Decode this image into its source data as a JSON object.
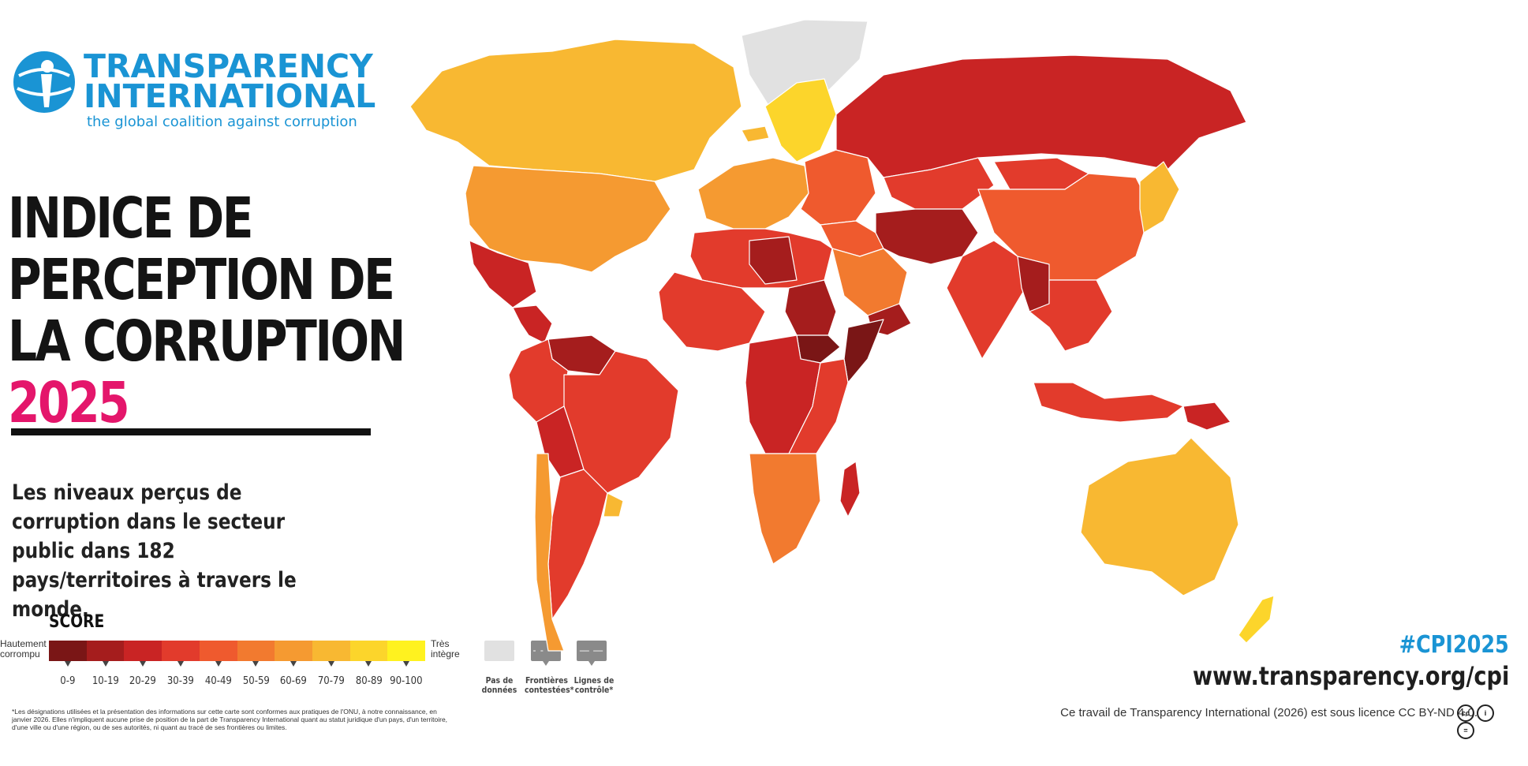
{
  "brand": {
    "line1": "TRANSPARENCY",
    "line2": "INTERNATIONAL",
    "tagline": "the global coalition against corruption",
    "color": "#1a94d4"
  },
  "title": {
    "line1": "INDICE DE",
    "line2": "PERCEPTION DE",
    "line3": "LA CORRUPTION",
    "year": "2025",
    "year_color": "#e4166b"
  },
  "subtitle": "Les niveaux perçus de corruption dans le secteur public dans 182 pays/territoires à travers le monde.",
  "legend": {
    "score_title": "SCORE",
    "low_label_1": "Hautement",
    "low_label_2": "corrompu",
    "high_label_1": "Très",
    "high_label_2": "intègre",
    "bins": [
      {
        "range": "0-9",
        "color": "#7a1616"
      },
      {
        "range": "10-19",
        "color": "#a51d1d"
      },
      {
        "range": "20-29",
        "color": "#c92424"
      },
      {
        "range": "30-39",
        "color": "#e23b2c"
      },
      {
        "range": "40-49",
        "color": "#ef5a2e"
      },
      {
        "range": "50-59",
        "color": "#f27a2f"
      },
      {
        "range": "60-69",
        "color": "#f59a31"
      },
      {
        "range": "70-79",
        "color": "#f8b832"
      },
      {
        "range": "80-89",
        "color": "#fcd52b"
      },
      {
        "range": "90-100",
        "color": "#fff21f"
      }
    ],
    "no_data_1": "Pas de",
    "no_data_2": "données",
    "disputed_1": "Frontières",
    "disputed_2": "contestées*",
    "control_1": "Lignes de",
    "control_2": "contrôle*",
    "no_data_color": "#e1e1e1"
  },
  "footnote": "*Les désignations utilisées et la présentation des informations sur cette carte sont conformes aux pratiques de l'ONU, à notre connaissance, en janvier 2026. Elles n'impliquent aucune prise de position de la part de Transparency International quant au statut juridique d'un pays, d'un territoire, d'une ville ou d'une région, ou de ses autorités, ni quant au tracé de ses frontières ou limites.",
  "hashtag": "#CPI2025",
  "url": "www.transparency.org/cpi",
  "license": "Ce travail de Transparency International (2026) est sous licence CC BY-ND 4.0.",
  "map": {
    "regions": [
      {
        "name": "canada",
        "bin": 7
      },
      {
        "name": "usa",
        "bin": 6
      },
      {
        "name": "mexico",
        "bin": 2
      },
      {
        "name": "central-america",
        "bin": 2
      },
      {
        "name": "greenland",
        "bin": -1
      },
      {
        "name": "venezuela",
        "bin": 1
      },
      {
        "name": "south-america-north",
        "bin": 3
      },
      {
        "name": "brazil",
        "bin": 3
      },
      {
        "name": "bolivia",
        "bin": 2
      },
      {
        "name": "chile",
        "bin": 6
      },
      {
        "name": "argentina",
        "bin": 3
      },
      {
        "name": "uruguay",
        "bin": 7
      },
      {
        "name": "iceland",
        "bin": 7
      },
      {
        "name": "scandinavia",
        "bin": 8
      },
      {
        "name": "western-europe",
        "bin": 6
      },
      {
        "name": "eastern-europe",
        "bin": 4
      },
      {
        "name": "russia",
        "bin": 2
      },
      {
        "name": "kazakhstan",
        "bin": 3
      },
      {
        "name": "middle-east",
        "bin": 4
      },
      {
        "name": "saudi-arabia",
        "bin": 5
      },
      {
        "name": "iran-afghanistan",
        "bin": 1
      },
      {
        "name": "yemen",
        "bin": 1
      },
      {
        "name": "north-africa",
        "bin": 3
      },
      {
        "name": "libya",
        "bin": 1
      },
      {
        "name": "west-africa",
        "bin": 3
      },
      {
        "name": "sudan",
        "bin": 1
      },
      {
        "name": "south-sudan-somalia",
        "bin": 0
      },
      {
        "name": "central-africa",
        "bin": 2
      },
      {
        "name": "east-africa",
        "bin": 3
      },
      {
        "name": "southern-africa",
        "bin": 5
      },
      {
        "name": "madagascar",
        "bin": 2
      },
      {
        "name": "india",
        "bin": 3
      },
      {
        "name": "china",
        "bin": 4
      },
      {
        "name": "mongolia",
        "bin": 3
      },
      {
        "name": "korea-japan",
        "bin": 7
      },
      {
        "name": "southeast-asia",
        "bin": 3
      },
      {
        "name": "myanmar",
        "bin": 1
      },
      {
        "name": "indonesia",
        "bin": 3
      },
      {
        "name": "png",
        "bin": 2
      },
      {
        "name": "australia",
        "bin": 7
      },
      {
        "name": "new-zealand",
        "bin": 8
      }
    ]
  }
}
